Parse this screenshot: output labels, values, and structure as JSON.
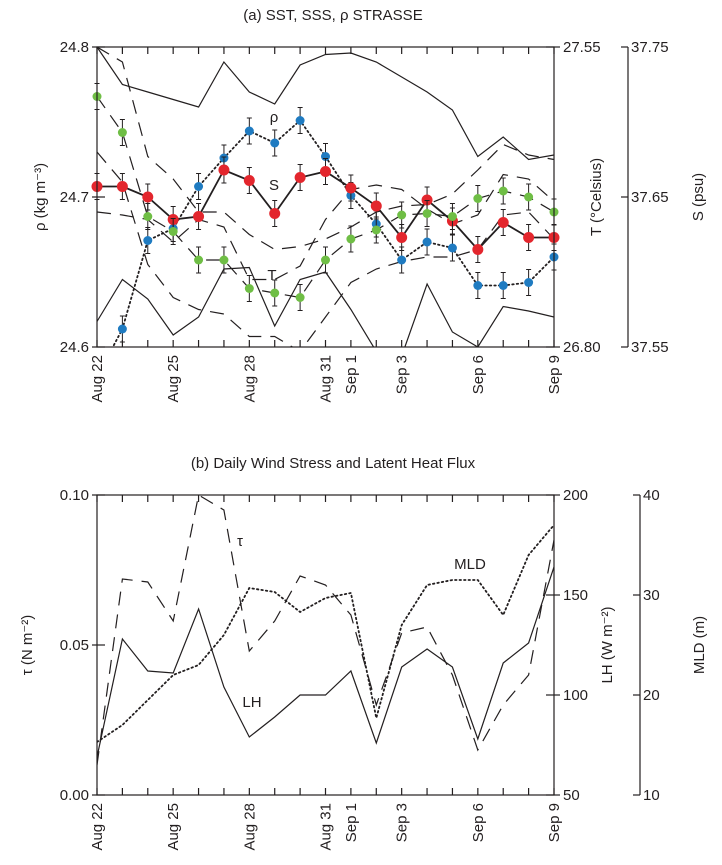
{
  "chart_data": [
    {
      "type": "line",
      "title": "(a) SST, SSS, ρ STRASSE",
      "x": [
        "Aug 22",
        "Aug 23",
        "Aug 24",
        "Aug 25",
        "Aug 26",
        "Aug 27",
        "Aug 28",
        "Aug 29",
        "Aug 30",
        "Aug 31",
        "Sep 1",
        "Sep 2",
        "Sep 3",
        "Sep 4",
        "Sep 5",
        "Sep 6",
        "Sep 7",
        "Sep 8",
        "Sep 9"
      ],
      "x_ticklabels": [
        "Aug 22",
        "Aug 25",
        "Aug 28",
        "Aug 31",
        "Sep 1",
        "Sep 3",
        "Sep 6",
        "Sep 9"
      ],
      "axes": {
        "left": {
          "label": "ρ (kg m⁻³)",
          "range": [
            24.6,
            24.8
          ],
          "ticks": [
            "24.6",
            "24.7",
            "24.8"
          ]
        },
        "right1": {
          "label": "T (°Celsius)",
          "range": [
            26.8,
            27.55
          ],
          "ticks": [
            "26.80",
            "27.55"
          ]
        },
        "right2": {
          "label": "S (psu)",
          "range": [
            37.55,
            37.75
          ],
          "ticks": [
            "37.55",
            "37.65",
            "37.75"
          ]
        }
      },
      "series": [
        {
          "name": "ρ",
          "axis": "left",
          "color": "#1f7bc1",
          "style": "dotted",
          "markers": true,
          "values": [
            24.58,
            24.612,
            24.671,
            24.679,
            24.707,
            24.726,
            24.744,
            24.736,
            24.751,
            24.727,
            24.701,
            24.682,
            24.658,
            24.67,
            24.666,
            24.641,
            24.641,
            24.643,
            24.66
          ]
        },
        {
          "name": "S",
          "axis": "left",
          "color": "#e3262d",
          "style": "solid",
          "markers": true,
          "values": [
            24.707,
            24.707,
            24.7,
            24.685,
            24.687,
            24.718,
            24.711,
            24.689,
            24.713,
            24.717,
            24.706,
            24.694,
            24.673,
            24.698,
            24.684,
            24.665,
            24.683,
            24.673,
            24.673
          ]
        },
        {
          "name": "T",
          "axis": "left",
          "color": "#6fbe45",
          "style": "dashed",
          "markers": true,
          "values": [
            24.767,
            24.743,
            24.687,
            24.677,
            24.658,
            24.658,
            24.639,
            24.636,
            24.633,
            24.658,
            24.672,
            24.678,
            24.688,
            24.689,
            24.687,
            24.699,
            24.704,
            24.7,
            24.69
          ]
        },
        {
          "name": "",
          "color": "#231f20",
          "style": "solid",
          "markers": false,
          "values": [
            24.8,
            24.775,
            24.77,
            24.765,
            24.76,
            24.79,
            24.77,
            24.762,
            24.788,
            24.795,
            24.796,
            24.79,
            24.78,
            24.77,
            24.758,
            24.727,
            24.74,
            24.725,
            24.728
          ]
        },
        {
          "name": "",
          "color": "#231f20",
          "style": "solid",
          "markers": false,
          "values": [
            24.617,
            24.645,
            24.632,
            24.608,
            24.62,
            24.652,
            24.653,
            24.614,
            24.645,
            24.65,
            24.625,
            24.597,
            24.594,
            24.642,
            24.61,
            24.6,
            24.627,
            24.624,
            24.62
          ]
        },
        {
          "name": "",
          "color": "#231f20",
          "style": "dashed",
          "markers": false,
          "values": [
            24.8,
            24.79,
            24.727,
            24.712,
            24.69,
            24.69,
            24.675,
            24.665,
            24.667,
            24.672,
            24.68,
            24.69,
            24.694,
            24.695,
            24.702,
            24.718,
            24.735,
            24.728,
            24.725
          ]
        },
        {
          "name": "",
          "color": "#231f20",
          "style": "dashed",
          "markers": false,
          "values": [
            24.69,
            24.688,
            24.685,
            24.67,
            24.685,
            24.68,
            24.645,
            24.645,
            24.654,
            24.685,
            24.705,
            24.708,
            24.705,
            24.692,
            24.682,
            24.688,
            24.715,
            24.712,
            24.697
          ]
        },
        {
          "name": "",
          "color": "#231f20",
          "style": "dashed",
          "markers": false,
          "values": [
            24.73,
            24.71,
            24.655,
            24.633,
            24.625,
            24.622,
            24.607,
            24.607,
            24.597,
            24.62,
            24.643,
            24.652,
            24.657,
            24.66,
            24.66,
            24.665,
            24.688,
            24.69,
            24.672
          ]
        }
      ],
      "annotations": [
        "ρ",
        "S",
        "T"
      ]
    },
    {
      "type": "line",
      "title": "(b) Daily Wind Stress and Latent Heat Flux",
      "x": [
        "Aug 22",
        "Aug 23",
        "Aug 24",
        "Aug 25",
        "Aug 26",
        "Aug 27",
        "Aug 28",
        "Aug 29",
        "Aug 30",
        "Aug 31",
        "Sep 1",
        "Sep 2",
        "Sep 3",
        "Sep 4",
        "Sep 5",
        "Sep 6",
        "Sep 7",
        "Sep 8",
        "Sep 9"
      ],
      "x_ticklabels": [
        "Aug 22",
        "Aug 25",
        "Aug 28",
        "Aug 31",
        "Sep 1",
        "Sep 3",
        "Sep 6",
        "Sep 9"
      ],
      "axes": {
        "left": {
          "label": "τ (N m⁻²)",
          "range": [
            0.0,
            0.1
          ],
          "ticks": [
            "0.00",
            "0.05",
            "0.10"
          ]
        },
        "right1": {
          "label": "LH (W m⁻²)",
          "range": [
            50,
            200
          ],
          "ticks": [
            "50",
            "100",
            "150",
            "200"
          ]
        },
        "right2": {
          "label": "MLD (m)",
          "range": [
            10,
            40
          ],
          "ticks": [
            "10",
            "20",
            "30",
            "40"
          ]
        }
      },
      "series": [
        {
          "name": "τ",
          "axis": "left",
          "style": "dashed",
          "values": [
            0.01,
            0.072,
            0.071,
            0.058,
            0.1,
            0.095,
            0.048,
            0.058,
            0.073,
            0.07,
            0.06,
            0.03,
            0.054,
            0.056,
            0.04,
            0.015,
            0.03,
            0.04,
            0.085
          ]
        },
        {
          "name": "LH",
          "axis": "right1",
          "style": "solid",
          "values": [
            69,
            128,
            112,
            111,
            143,
            104,
            79,
            89,
            100,
            100,
            112,
            76,
            114,
            123,
            114,
            78,
            116,
            126,
            164
          ]
        },
        {
          "name": "MLD",
          "axis": "right2",
          "style": "dotted",
          "values": [
            15.3,
            17.0,
            19.5,
            22.0,
            23.0,
            26.0,
            30.7,
            30.3,
            28.3,
            29.7,
            30.2,
            17.7,
            27.0,
            31.0,
            31.5,
            31.5,
            28.0,
            34.0,
            37.0
          ]
        }
      ],
      "annotations": [
        "τ",
        "LH",
        "MLD"
      ]
    }
  ]
}
